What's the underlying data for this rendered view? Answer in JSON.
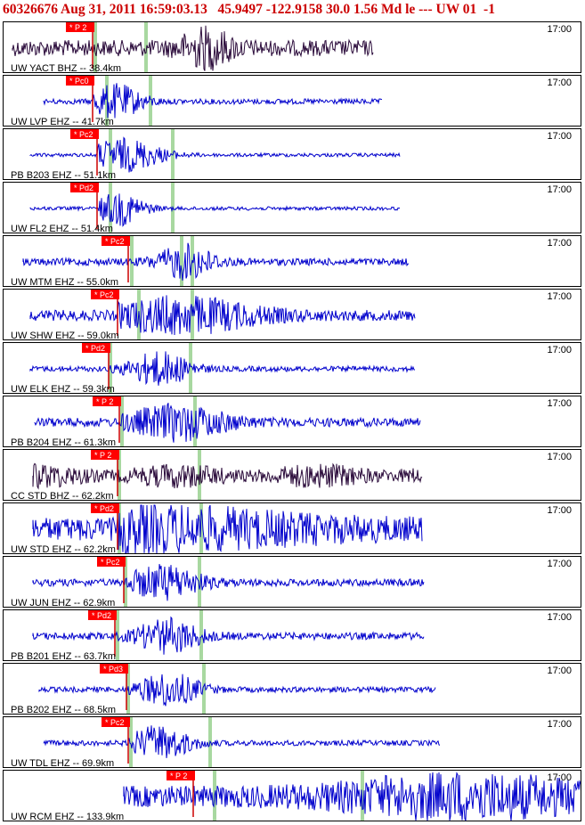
{
  "header": "60326676 Aug 31, 2011 16:59:03.13   45.9497 -122.9158 30.0 1.56 Md le --- UW 01  -1",
  "colors": {
    "trace_blue": "#0000cc",
    "trace_dark": "#2a0a3a",
    "pick_red": "#ff0000",
    "pick_line": "#cc0000",
    "marker_green": "#a8d8a0"
  },
  "traces": [
    {
      "label": "UW YACT BHZ -- 38.4km",
      "time_label": "17:00",
      "pick": "P 2",
      "color": "dark"
    },
    {
      "label": "UW LVP EHZ -- 41.7km",
      "time_label": "17:00",
      "pick": "Pc0",
      "color": "blue"
    },
    {
      "label": "PB B203 EHZ -- 51.1km",
      "time_label": "17:00",
      "pick": "Pc2",
      "color": "blue"
    },
    {
      "label": "UW FL2 EHZ -- 51.4km",
      "time_label": "17:00",
      "pick": "Pd2",
      "color": "blue"
    },
    {
      "label": "UW MTM EHZ -- 55.0km",
      "time_label": "17:00",
      "pick": "Pc2",
      "color": "blue"
    },
    {
      "label": "UW SHW EHZ -- 59.0km",
      "time_label": "17:00",
      "pick": "Pc2",
      "color": "blue"
    },
    {
      "label": "UW ELK EHZ -- 59.3km",
      "time_label": "17:00",
      "pick": "Pd2",
      "color": "blue"
    },
    {
      "label": "PB B204 EHZ -- 61.3km",
      "time_label": "17:00",
      "pick": "P 2",
      "color": "blue"
    },
    {
      "label": "CC STD BHZ -- 62.2km",
      "time_label": "17:00",
      "pick": "P 2",
      "color": "dark"
    },
    {
      "label": "UW STD EHZ -- 62.2km",
      "time_label": "17:00",
      "pick": "Pd2",
      "color": "blue"
    },
    {
      "label": "UW JUN EHZ -- 62.9km",
      "time_label": "17:00",
      "pick": "Pc2",
      "color": "blue"
    },
    {
      "label": "PB B201 EHZ -- 63.7km",
      "time_label": "17:00",
      "pick": "Pd2",
      "color": "blue"
    },
    {
      "label": "PB B202 EHZ -- 68.5km",
      "time_label": "17:00",
      "pick": "Pd3",
      "color": "blue"
    },
    {
      "label": "UW TDL EHZ -- 69.9km",
      "time_label": "17:00",
      "pick": "Pc2",
      "color": "blue"
    },
    {
      "label": "UW RCM EHZ -- 133.9km",
      "time_label": "17:00",
      "pick": "P 2",
      "color": "blue"
    }
  ]
}
